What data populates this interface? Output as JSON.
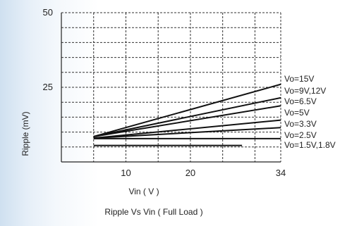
{
  "chart_data": {
    "type": "line",
    "title": "Ripple  Vs Vin ( Full Load )",
    "xlabel": "Vin ( V )",
    "ylabel": "Ripple (mV)",
    "xlim": [
      0,
      34
    ],
    "ylim": [
      0,
      50
    ],
    "x_ticks": [
      10,
      20,
      34
    ],
    "y_ticks": [
      25,
      50
    ],
    "grid": true,
    "series": [
      {
        "name": "Vo=15V",
        "x": [
          5,
          34
        ],
        "y": [
          8.5,
          26.0
        ]
      },
      {
        "name": "Vo=9V,12V",
        "x": [
          5,
          34
        ],
        "y": [
          8.5,
          21.5
        ]
      },
      {
        "name": "Vo=6.5V",
        "x": [
          5,
          34
        ],
        "y": [
          8.5,
          18.8
        ]
      },
      {
        "name": "Vo=5V",
        "x": [
          5,
          34
        ],
        "y": [
          8.0,
          14.0
        ]
      },
      {
        "name": "Vo=3.3V",
        "x": [
          5,
          34
        ],
        "y": [
          8.0,
          11.5
        ]
      },
      {
        "name": "Vo=2.5V",
        "x": [
          5,
          34
        ],
        "y": [
          7.8,
          7.8
        ]
      },
      {
        "name": "Vo=1.5V,1.8V",
        "x": [
          5,
          28
        ],
        "y": [
          5.5,
          5.5
        ]
      }
    ]
  }
}
